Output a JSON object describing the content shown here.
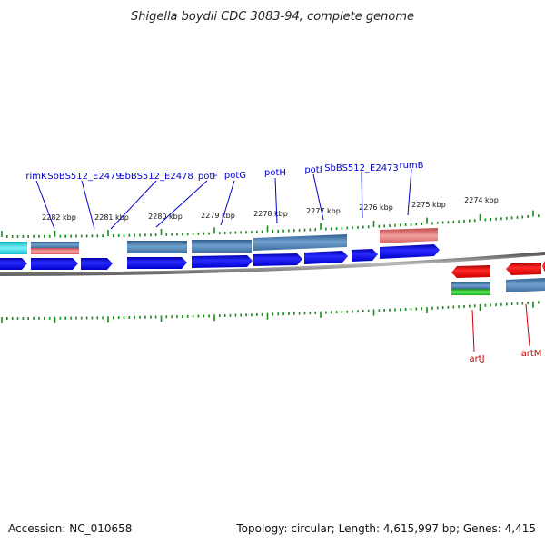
{
  "title": "Shigella boydii CDC 3083-94, complete genome",
  "footer": {
    "accession": "Accession: NC_010658",
    "summary": "Topology: circular; Length: 4,615,997 bp; Genes: 4,415"
  },
  "colors": {
    "forward_gene": "#0000ee",
    "reverse_gene": "#ee0000",
    "cds_band": "#4a7fb5",
    "rna_band": "#e07070",
    "cyan_band": "#22d3e0",
    "green_band": "#22bb22",
    "tick": "#1a8a1a",
    "backbone": "#888888",
    "label_blue": "#0000cc",
    "label_red": "#cc0000"
  },
  "ticks": [
    {
      "label": "2282 kbp"
    },
    {
      "label": "2281 kbp"
    },
    {
      "label": "2280 kbp"
    },
    {
      "label": "2279 kbp"
    },
    {
      "label": "2278 kbp"
    },
    {
      "label": "2277 kbp"
    },
    {
      "label": "2276 kbp"
    },
    {
      "label": "2275 kbp"
    },
    {
      "label": "2274 kbp"
    }
  ],
  "gene_labels_top": [
    {
      "name": "rimK"
    },
    {
      "name": "SbBS512_E2479"
    },
    {
      "name": "SbBS512_E2478"
    },
    {
      "name": "potF"
    },
    {
      "name": "potG"
    },
    {
      "name": "potH"
    },
    {
      "name": "potI"
    },
    {
      "name": "SbBS512_E2473"
    },
    {
      "name": "rumB"
    }
  ],
  "gene_labels_bottom": [
    {
      "name": "artJ"
    },
    {
      "name": "artM"
    }
  ]
}
